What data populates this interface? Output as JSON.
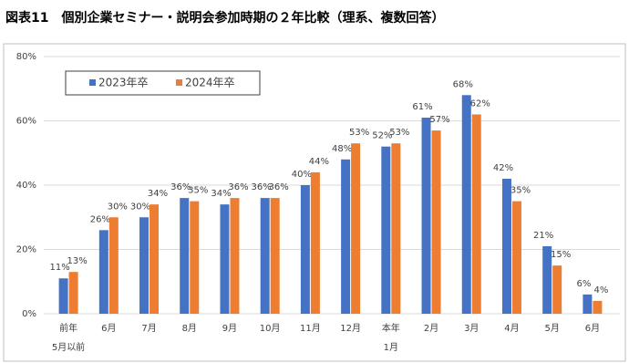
{
  "chart_data": {
    "type": "bar",
    "title": "図表11　個別企業セミナー・説明会参加時期の２年比較（理系、複数回答）",
    "categories": [
      [
        "前年",
        "5月以前"
      ],
      [
        "6月"
      ],
      [
        "7月"
      ],
      [
        "8月"
      ],
      [
        "9月"
      ],
      [
        "10月"
      ],
      [
        "11月"
      ],
      [
        "12月"
      ],
      [
        "本年",
        "1月"
      ],
      [
        "2月"
      ],
      [
        "3月"
      ],
      [
        "4月"
      ],
      [
        "5月"
      ],
      [
        "6月"
      ]
    ],
    "series": [
      {
        "name": "2023年卒",
        "color": "#4472c4",
        "values": [
          11,
          26,
          30,
          36,
          34,
          36,
          40,
          48,
          52,
          61,
          68,
          42,
          21,
          6
        ],
        "value_labels": [
          "11%",
          "26%",
          "30%",
          "36%",
          "34%",
          "36%",
          "40%",
          "48%",
          "52%",
          "61%",
          "68%",
          "42%",
          "21%",
          "6%"
        ]
      },
      {
        "name": "2024年卒",
        "color": "#ed7d31",
        "values": [
          13,
          30,
          34,
          35,
          36,
          36,
          44,
          53,
          53,
          57,
          62,
          35,
          15,
          4
        ],
        "value_labels": [
          "13%",
          "30%",
          "34%",
          "35%",
          "36%",
          "36%",
          "44%",
          "53%",
          "53%",
          "57%",
          "62%",
          "35%",
          "15%",
          "4%"
        ]
      }
    ],
    "ylim": [
      0,
      80
    ],
    "yticks": [
      {
        "value": 0,
        "label": "0%"
      },
      {
        "value": 20,
        "label": "20%"
      },
      {
        "value": 40,
        "label": "40%"
      },
      {
        "value": 60,
        "label": "60%"
      },
      {
        "value": 80,
        "label": "80%"
      }
    ],
    "grid": true
  }
}
